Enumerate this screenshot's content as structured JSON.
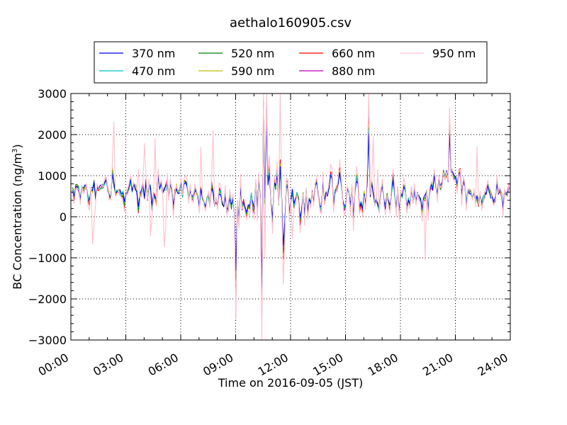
{
  "chart_data": {
    "type": "line",
    "title": "aethalo160905.csv",
    "xlabel": "Time on 2016-09-05 (JST)",
    "ylabel_main": "BC Concentration (ng/m",
    "ylabel_sup": "3",
    "ylabel_end": ")",
    "ylim": [
      -3000,
      3000
    ],
    "yticks": [
      -3000,
      -2000,
      -1000,
      0,
      1000,
      2000,
      3000
    ],
    "ytick_labels": [
      "−3000",
      "−2000",
      "−1000",
      "0",
      "1000",
      "2000",
      "3000"
    ],
    "xlim_hours": [
      0,
      24
    ],
    "xticks_hours": [
      0,
      3,
      6,
      9,
      12,
      15,
      18,
      21,
      24
    ],
    "xtick_labels": [
      "00:00",
      "03:00",
      "06:00",
      "09:00",
      "12:00",
      "15:00",
      "18:00",
      "21:00",
      "24:00"
    ],
    "grid": true,
    "legend_position": "top-center",
    "sample_interval_minutes": 5,
    "series": [
      {
        "name": "370 nm",
        "color": "#0000ff"
      },
      {
        "name": "470 nm",
        "color": "#00bfbf"
      },
      {
        "name": "520 nm",
        "color": "#008000"
      },
      {
        "name": "590 nm",
        "color": "#bfbf00"
      },
      {
        "name": "660 nm",
        "color": "#ff0000"
      },
      {
        "name": "880 nm",
        "color": "#bf00bf"
      },
      {
        "name": "950 nm",
        "color": "#ffc0cb"
      }
    ],
    "baseline_profile": {
      "hours": [
        0,
        1,
        2,
        3,
        4,
        5,
        6,
        7,
        8,
        9,
        10,
        11,
        12,
        13,
        14,
        15,
        16,
        17,
        18,
        19,
        20,
        20.7,
        21.5,
        22,
        23,
        24
      ],
      "values": [
        750,
        700,
        650,
        650,
        600,
        600,
        600,
        500,
        300,
        200,
        600,
        550,
        450,
        500,
        600,
        550,
        550,
        500,
        450,
        450,
        700,
        1150,
        700,
        450,
        500,
        600
      ]
    },
    "notable_extremes": [
      {
        "hour": 10.4,
        "value": -2060
      },
      {
        "hour": 10.7,
        "value": 2500
      },
      {
        "hour": 10.5,
        "value": 2550
      },
      {
        "hour": 11.6,
        "value": -850
      },
      {
        "hour": 9.0,
        "value": -1500
      },
      {
        "hour": 20.7,
        "value": 2100
      },
      {
        "hour": 16.3,
        "value": 2150
      }
    ]
  }
}
